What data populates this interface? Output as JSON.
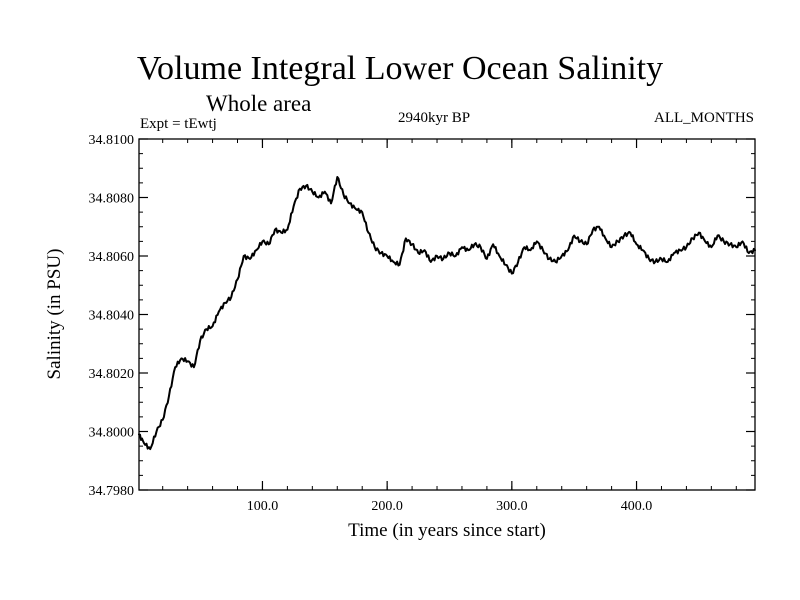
{
  "header": {
    "title": "Volume Integral Lower Ocean Salinity",
    "subtitle": "Whole area",
    "experiment": "Expt = tEwtj",
    "period": "2940kyr BP",
    "months": "ALL_MONTHS"
  },
  "chart_data": {
    "type": "line",
    "title": "Volume Integral Lower Ocean Salinity",
    "subtitle": "Whole area",
    "xlabel": "Time (in years since start)",
    "ylabel": "Salinity (in PSU)",
    "xlim": [
      1,
      495
    ],
    "ylim": [
      34.798,
      34.81
    ],
    "x_ticks": [
      100,
      200,
      300,
      400
    ],
    "x_tick_labels": [
      "100.0",
      "200.0",
      "300.0",
      "400.0"
    ],
    "y_ticks": [
      34.798,
      34.8,
      34.802,
      34.804,
      34.806,
      34.808,
      34.81
    ],
    "y_tick_labels": [
      "34.7980",
      "34.8000",
      "34.8020",
      "34.8040",
      "34.8060",
      "34.8080",
      "34.8100"
    ],
    "grid": false,
    "series": [
      {
        "name": "Salinity",
        "x": [
          1,
          5,
          10,
          15,
          20,
          25,
          30,
          35,
          40,
          45,
          50,
          55,
          60,
          65,
          70,
          75,
          80,
          85,
          90,
          95,
          100,
          105,
          110,
          115,
          120,
          125,
          130,
          135,
          140,
          145,
          150,
          155,
          160,
          165,
          170,
          175,
          180,
          185,
          190,
          195,
          200,
          205,
          210,
          215,
          220,
          225,
          230,
          235,
          240,
          245,
          250,
          255,
          260,
          265,
          270,
          275,
          280,
          285,
          290,
          295,
          300,
          305,
          310,
          315,
          320,
          325,
          330,
          335,
          340,
          345,
          350,
          355,
          360,
          365,
          370,
          375,
          380,
          385,
          390,
          395,
          400,
          405,
          410,
          415,
          420,
          425,
          430,
          435,
          440,
          445,
          450,
          455,
          460,
          465,
          470,
          475,
          480,
          485,
          490,
          495
        ],
        "values": [
          34.7999,
          34.7996,
          34.7994,
          34.8,
          34.8004,
          34.8012,
          34.8022,
          34.8025,
          34.8024,
          34.8022,
          34.8031,
          34.8035,
          34.8036,
          34.8041,
          34.8044,
          34.8046,
          34.8052,
          34.806,
          34.8059,
          34.8062,
          34.8065,
          34.8064,
          34.8069,
          34.8068,
          34.8069,
          34.8077,
          34.8083,
          34.8084,
          34.8082,
          34.808,
          34.8082,
          34.8078,
          34.8087,
          34.8081,
          34.8078,
          34.8076,
          34.8075,
          34.8068,
          34.8063,
          34.8061,
          34.806,
          34.8058,
          34.8057,
          34.8066,
          34.8064,
          34.8061,
          34.8062,
          34.8058,
          34.806,
          34.8059,
          34.8061,
          34.806,
          34.8063,
          34.8062,
          34.8064,
          34.8063,
          34.8059,
          34.8064,
          34.806,
          34.8057,
          34.8054,
          34.8058,
          34.8063,
          34.8062,
          34.8065,
          34.8062,
          34.8059,
          34.8058,
          34.806,
          34.8062,
          34.8067,
          34.8065,
          34.8064,
          34.8069,
          34.807,
          34.8066,
          34.8063,
          34.8065,
          34.8067,
          34.8068,
          34.8064,
          34.8062,
          34.8059,
          34.8058,
          34.8059,
          34.8058,
          34.8061,
          34.8062,
          34.8063,
          34.8066,
          34.8068,
          34.8065,
          34.8063,
          34.8067,
          34.8065,
          34.8064,
          34.8063,
          34.8065,
          34.8061,
          34.8062
        ]
      }
    ]
  }
}
